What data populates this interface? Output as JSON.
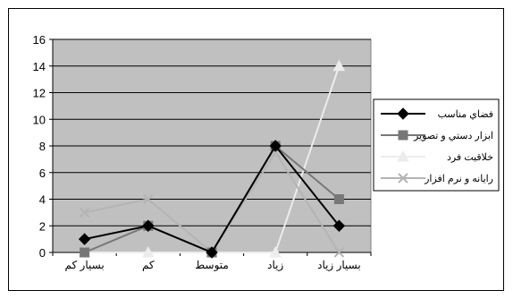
{
  "chart_data": {
    "type": "line",
    "categories": [
      "بسیار کم",
      "کم",
      "متوسط",
      "زیاد",
      "بسیار زیاد"
    ],
    "series": [
      {
        "name": "فضاي مناسب",
        "values": [
          1,
          2,
          0,
          8,
          2
        ],
        "color": "#000000",
        "marker": "diamond"
      },
      {
        "name": "ابزار دستي و تصوير",
        "values": [
          0,
          2,
          0,
          8,
          4
        ],
        "color": "#777777",
        "marker": "square"
      },
      {
        "name": "خلاقيت فرد",
        "values": [
          0,
          0,
          0,
          0,
          14
        ],
        "color": "#ececec",
        "marker": "triangle"
      },
      {
        "name": "رايانه و نرم افزار",
        "values": [
          3,
          4,
          0,
          7.5,
          0
        ],
        "color": "#b4b4b4",
        "marker": "x"
      }
    ],
    "ylim": [
      0,
      16
    ],
    "yticks": [
      0,
      2,
      4,
      6,
      8,
      10,
      12,
      14,
      16
    ],
    "plot_background": "#c0c0c0",
    "gridlines": true,
    "legend_position": "right",
    "title": "",
    "xlabel": "",
    "ylabel": ""
  }
}
